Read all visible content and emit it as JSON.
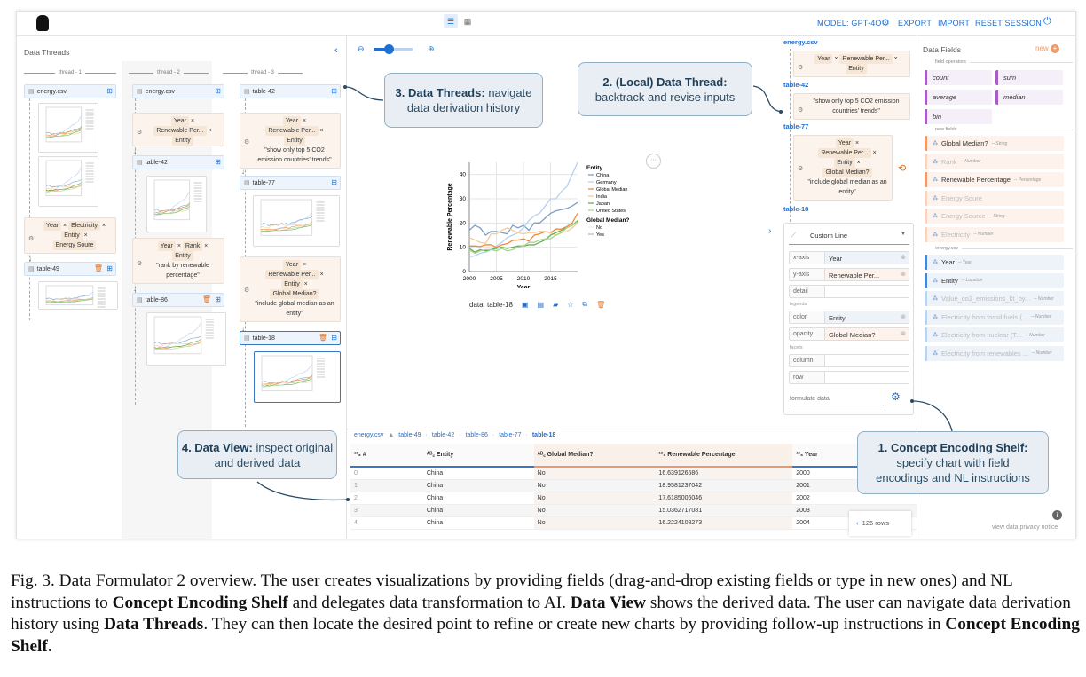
{
  "topbar": {
    "model": "MODEL: GPT-4O",
    "export": "EXPORT",
    "import": "IMPORT",
    "reset": "RESET SESSION"
  },
  "threads": {
    "title": "Data Threads",
    "columns": [
      {
        "label": "thread - 1",
        "cards": [
          "energy.csv",
          "table-49"
        ],
        "encoding": {
          "chips": [
            "Year",
            "Electricity",
            "Entity",
            "Energy Soure"
          ]
        }
      },
      {
        "label": "thread - 2",
        "cards": [
          "energy.csv",
          "table-42",
          "table-86"
        ],
        "enc1": {
          "chips": [
            "Year",
            "Renewable Per...",
            "Entity"
          ]
        },
        "enc2": {
          "chips": [
            "Year",
            "Rank",
            "Entity"
          ],
          "prompt": "\"rank by renewable percentage\""
        }
      },
      {
        "label": "thread - 3",
        "cards": [
          "table-42",
          "table-77",
          "table-18"
        ],
        "enc1": {
          "chips": [
            "Year",
            "Renewable Per...",
            "Entity"
          ],
          "prompt": "\"show only top 5 CO2 emission countries' trends\""
        },
        "enc2": {
          "chips": [
            "Year",
            "Renewable Per...",
            "Entity",
            "Global Median?"
          ],
          "prompt": "\"include global median as an entity\""
        }
      }
    ]
  },
  "local_thread": {
    "tables": [
      "energy.csv",
      "table-42",
      "table-77",
      "table-18"
    ],
    "step1": {
      "chips": [
        "Year",
        "Renewable Per...",
        "Entity"
      ]
    },
    "step2": {
      "prompt": "\"show only top 5 CO2 emission countries' trends\""
    },
    "step3": {
      "chips": [
        "Year",
        "Renewable Per...",
        "Entity",
        "Global Median?"
      ],
      "prompt": "\"include global median as an entity\""
    }
  },
  "chart_data": {
    "type": "line",
    "xlabel": "Year",
    "ylabel": "Renewable Percentage",
    "xlim": [
      2000,
      2020
    ],
    "ylim": [
      0,
      45
    ],
    "xticks": [
      "2000",
      "2005",
      "2010",
      "2015"
    ],
    "yticks": [
      "0",
      "10",
      "20",
      "30",
      "40"
    ],
    "grid": true,
    "legend_placement": "right",
    "legend_title": "Entity",
    "legend2_title": "Global Median?",
    "legend2_items": [
      "No",
      "Yes"
    ],
    "x": [
      2000,
      2001,
      2002,
      2003,
      2004,
      2005,
      2006,
      2007,
      2008,
      2009,
      2010,
      2011,
      2012,
      2013,
      2014,
      2015,
      2016,
      2017,
      2018,
      2019,
      2020
    ],
    "series": [
      {
        "name": "China",
        "color": "#7f9fc6",
        "values": [
          17,
          19,
          18,
          15,
          16.5,
          16.5,
          16,
          15.5,
          19,
          18,
          19,
          17,
          20,
          20,
          22,
          24,
          25,
          25.5,
          26,
          27,
          28.5
        ]
      },
      {
        "name": "Germany",
        "color": "#b8d0ee",
        "values": [
          6,
          6.5,
          7.5,
          8,
          9,
          10.5,
          12,
          14,
          15,
          16,
          18,
          21,
          23,
          24,
          27,
          30,
          30,
          33,
          35,
          40,
          45
        ]
      },
      {
        "name": "Global Median",
        "color": "#ef8a3c",
        "values": [
          10.5,
          10.5,
          10.3,
          11,
          11,
          10,
          11,
          11.5,
          12.8,
          13,
          13.5,
          12.5,
          15,
          15.5,
          16.5,
          16,
          17.5,
          17.5,
          18.5,
          20,
          24
        ]
      },
      {
        "name": "India",
        "color": "#f8c996",
        "values": [
          14,
          13,
          12,
          11.5,
          15.5,
          15.5,
          17,
          18,
          17,
          16,
          15.5,
          16,
          16,
          16.5,
          16.5,
          16,
          15,
          16,
          16.5,
          18,
          20
        ]
      },
      {
        "name": "Japan",
        "color": "#6aae52",
        "values": [
          9.5,
          8,
          9,
          8.5,
          9,
          9.5,
          10,
          9.5,
          10,
          10.5,
          10.5,
          11,
          11,
          12,
          13,
          15,
          16,
          17,
          18,
          19,
          21
        ]
      },
      {
        "name": "United States",
        "color": "#a7d790",
        "values": [
          9,
          7.5,
          8.5,
          9,
          9,
          8.5,
          9.5,
          8.5,
          9,
          10,
          10.5,
          12,
          12,
          13,
          13.5,
          13.5,
          15,
          16,
          18,
          19,
          20.5
        ]
      }
    ]
  },
  "chart_footer": {
    "data_label": "data: table-18"
  },
  "shelf": {
    "chart_type": "Custom Line",
    "legends_label": "legends",
    "facets_label": "facets",
    "formulate_placeholder": "formulate data",
    "channels": [
      {
        "ch": "x-axis",
        "field": "Year"
      },
      {
        "ch": "y-axis",
        "field": "Renewable Per..."
      },
      {
        "ch": "detail",
        "field": ""
      },
      {
        "ch": "color",
        "field": "Entity"
      },
      {
        "ch": "opacity",
        "field": "Global Median?"
      },
      {
        "ch": "column",
        "field": ""
      },
      {
        "ch": "row",
        "field": ""
      }
    ]
  },
  "fields": {
    "title": "Data Fields",
    "new_label": "new",
    "operators_label": "field operators",
    "operators": [
      "count",
      "sum",
      "average",
      "median",
      "bin"
    ],
    "new_fields_label": "new fields",
    "new_fields": [
      {
        "name": "Global Median?",
        "type": "-- String"
      },
      {
        "name": "Rank",
        "type": "-- Number"
      },
      {
        "name": "Renewable Percentage",
        "type": "-- Percentage"
      },
      {
        "name": "Energy Soure",
        "type": ""
      },
      {
        "name": "Energy Source",
        "type": "-- String"
      },
      {
        "name": "Electricity",
        "type": "-- Number"
      }
    ],
    "source_label": "energy.csv",
    "source_fields": [
      {
        "name": "Year",
        "type": "-- Year"
      },
      {
        "name": "Entity",
        "type": "-- Location"
      },
      {
        "name": "Value_co2_emissions_kt_by...",
        "type": "-- Number"
      },
      {
        "name": "Electricity from fossil fuels (...",
        "type": "-- Number"
      },
      {
        "name": "Electricity from nuclear (T...",
        "type": "-- Number"
      },
      {
        "name": "Electricity from renewables ...",
        "type": "-- Number"
      }
    ],
    "privacy": "view data privacy notice"
  },
  "dataview": {
    "breadcrumb": [
      "energy.csv",
      "table-49",
      "table-42",
      "table-86",
      "table-77",
      "table-18"
    ],
    "columns": [
      "#",
      "Entity",
      "Global Median?",
      "Renewable Percentage",
      "Year"
    ],
    "rows": [
      [
        "0",
        "China",
        "No",
        "16.639126586",
        "2000"
      ],
      [
        "1",
        "China",
        "No",
        "18.9581237042",
        "2001"
      ],
      [
        "2",
        "China",
        "No",
        "17.6185006046",
        "2002"
      ],
      [
        "3",
        "China",
        "No",
        "15.0362717081",
        "2003"
      ],
      [
        "4",
        "China",
        "No",
        "16.2224108273",
        "2004"
      ]
    ],
    "row_count": "126 rows"
  },
  "callouts": {
    "c1": {
      "title": "1. Concept Encoding Shelf:",
      "text": "specify chart with field encodings and NL instructions"
    },
    "c2": {
      "title": "2. (Local) Data Thread:",
      "text": "backtrack and revise inputs"
    },
    "c3": {
      "title": "3. Data Threads:",
      "text": "navigate data derivation history"
    },
    "c4": {
      "title": "4. Data View:",
      "text": "inspect original and derived data"
    }
  },
  "caption": [
    {
      "t": "Fig. 3.  Data Formulator 2 overview. The user creates visualizations by providing fields (drag-and-drop existing fields or type in new ones) and NL instructions to "
    },
    {
      "t": "Concept Encoding Shelf",
      "b": true
    },
    {
      "t": " and delegates data transformation to AI. "
    },
    {
      "t": "Data View",
      "b": true
    },
    {
      "t": " shows the derived data. The user can navigate data derivation history using "
    },
    {
      "t": "Data Threads",
      "b": true
    },
    {
      "t": ". They can then locate the desired point to refine or create new charts by providing follow-up instructions in "
    },
    {
      "t": "Concept Encoding Shelf",
      "b": true
    },
    {
      "t": "."
    }
  ]
}
